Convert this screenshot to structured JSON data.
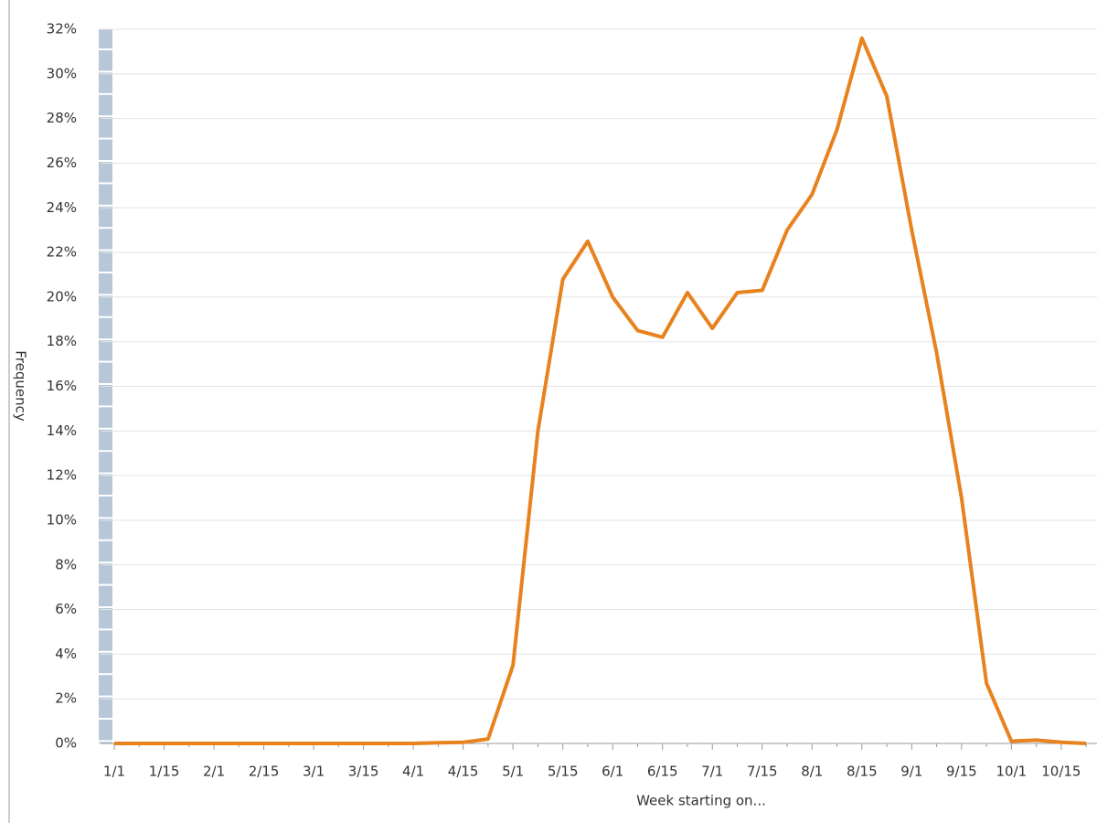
{
  "chart_data": {
    "type": "line",
    "x_label": "Week starting on...",
    "y_label": "Frequency",
    "categories": [
      "1/1",
      null,
      "1/15",
      null,
      "2/1",
      null,
      "2/15",
      null,
      "3/1",
      null,
      "3/15",
      null,
      "4/1",
      null,
      "4/15",
      null,
      "5/1",
      null,
      "5/15",
      null,
      "6/1",
      null,
      "6/15",
      null,
      "7/1",
      null,
      "7/15",
      null,
      "8/1",
      null,
      "8/15",
      null,
      "9/1",
      null,
      "9/15",
      null,
      "10/1",
      null,
      "10/15",
      null
    ],
    "series": [
      {
        "name": "Frequency",
        "color": "#e8821e",
        "values": [
          0,
          0,
          0,
          0,
          0,
          0,
          0,
          0,
          0,
          0,
          0,
          0,
          0,
          0.03,
          0.05,
          0.2,
          3.5,
          14,
          20.8,
          22.5,
          20,
          18.5,
          18.2,
          20.2,
          18.6,
          20.2,
          20.3,
          23,
          24.6,
          27.5,
          31.6,
          29,
          23,
          17.5,
          11,
          2.7,
          0.1,
          0.15,
          0.05,
          0
        ]
      }
    ],
    "ylim": [
      0,
      32
    ],
    "yticks": [
      {
        "value": 0,
        "label": "0%"
      },
      {
        "value": 2,
        "label": "2%"
      },
      {
        "value": 4,
        "label": "4%"
      },
      {
        "value": 6,
        "label": "6%"
      },
      {
        "value": 8,
        "label": "8%"
      },
      {
        "value": 10,
        "label": "10%"
      },
      {
        "value": 12,
        "label": "12%"
      },
      {
        "value": 14,
        "label": "14%"
      },
      {
        "value": 16,
        "label": "16%"
      },
      {
        "value": 18,
        "label": "18%"
      },
      {
        "value": 20,
        "label": "20%"
      },
      {
        "value": 22,
        "label": "22%"
      },
      {
        "value": 24,
        "label": "24%"
      },
      {
        "value": 26,
        "label": "26%"
      },
      {
        "value": 28,
        "label": "28%"
      },
      {
        "value": 30,
        "label": "30%"
      },
      {
        "value": 32,
        "label": "32%"
      }
    ],
    "grid": true
  }
}
